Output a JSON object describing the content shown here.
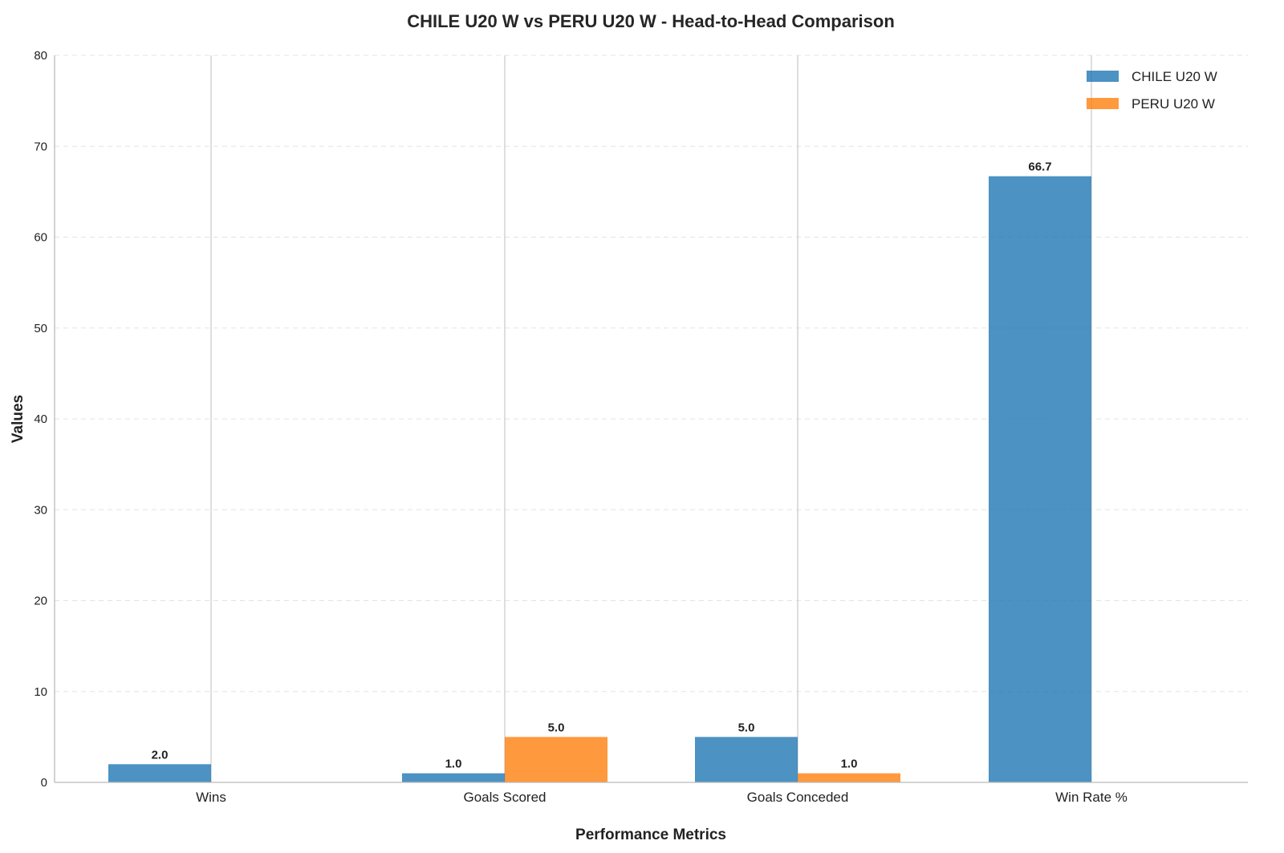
{
  "chart_data": {
    "type": "bar",
    "title": "CHILE U20 W vs PERU U20 W - Head-to-Head Comparison",
    "xlabel": "Performance Metrics",
    "ylabel": "Values",
    "categories": [
      "Wins",
      "Goals Scored",
      "Goals Conceded",
      "Win Rate %"
    ],
    "series": [
      {
        "name": "CHILE U20 W",
        "color": "#1f77b4",
        "values": [
          2.0,
          1.0,
          5.0,
          66.7
        ],
        "labels": [
          "2.0",
          "1.0",
          "5.0",
          "66.7"
        ]
      },
      {
        "name": "PERU U20 W",
        "color": "#ff7f0e",
        "values": [
          0,
          5.0,
          1.0,
          0
        ],
        "labels": [
          "",
          "5.0",
          "1.0",
          ""
        ]
      }
    ],
    "ylim": [
      0,
      80
    ],
    "yticks": [
      0,
      10,
      20,
      30,
      40,
      50,
      60,
      70,
      80
    ],
    "grid": "y-dashed",
    "legend": "top-right"
  }
}
